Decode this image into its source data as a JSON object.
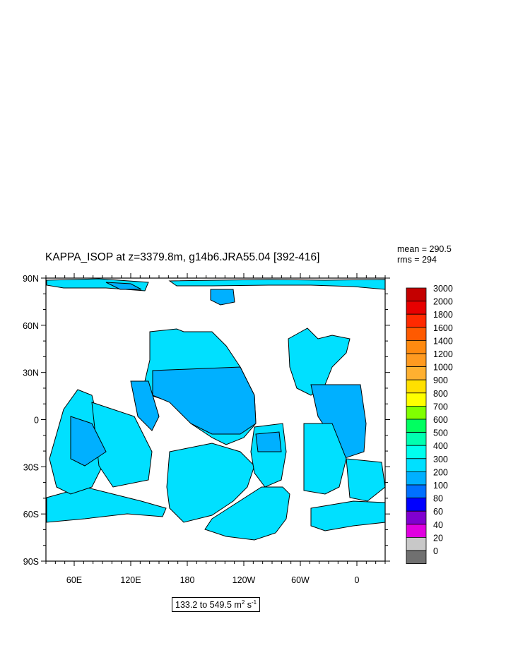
{
  "chart_data": {
    "type": "heatmap",
    "title": "KAPPA_ISOP at z=3379.8m, g14b6.JRA55.04 [392-416]",
    "stats": {
      "mean_label": "mean = 290.5",
      "rms_label": "rms = 294"
    },
    "range_prefix": "133.2 to 549.5 m",
    "range_sup1": "2",
    "range_mid": " s",
    "range_sup2": "-1",
    "x_ticks": [
      {
        "label": "60E",
        "lon": 60
      },
      {
        "label": "120E",
        "lon": 120
      },
      {
        "label": "180",
        "lon": 180
      },
      {
        "label": "120W",
        "lon": 240
      },
      {
        "label": "60W",
        "lon": 300
      },
      {
        "label": "0",
        "lon": 360
      }
    ],
    "x_range": [
      30,
      390
    ],
    "y_ticks": [
      {
        "label": "90N",
        "lat": 90
      },
      {
        "label": "60N",
        "lat": 60
      },
      {
        "label": "30N",
        "lat": 30
      },
      {
        "label": "0",
        "lat": 0
      },
      {
        "label": "30S",
        "lat": -30
      },
      {
        "label": "60S",
        "lat": -60
      },
      {
        "label": "90S",
        "lat": -90
      }
    ],
    "y_range": [
      -90,
      90
    ],
    "colorbar": {
      "levels": [
        "3000",
        "2000",
        "1800",
        "1600",
        "1400",
        "1200",
        "1000",
        "900",
        "800",
        "700",
        "600",
        "500",
        "400",
        "300",
        "200",
        "100",
        "80",
        "60",
        "40",
        "20",
        "0"
      ],
      "colors": [
        "#c40000",
        "#e60000",
        "#ff2a00",
        "#ff5a00",
        "#ff8a10",
        "#ff9a20",
        "#ffb030",
        "#ffe000",
        "#ffff00",
        "#80ff00",
        "#00ff60",
        "#00ffb0",
        "#00ffee",
        "#00e0ff",
        "#00b0ff",
        "#0070ff",
        "#0000ff",
        "#8000d0",
        "#e000e0",
        "#c8c8c8",
        "#707070"
      ]
    },
    "field_colors": {
      "low": "#00b0ff",
      "mid": "#00e0ff",
      "high": "#00ffee",
      "dark": "#0070ff"
    }
  }
}
